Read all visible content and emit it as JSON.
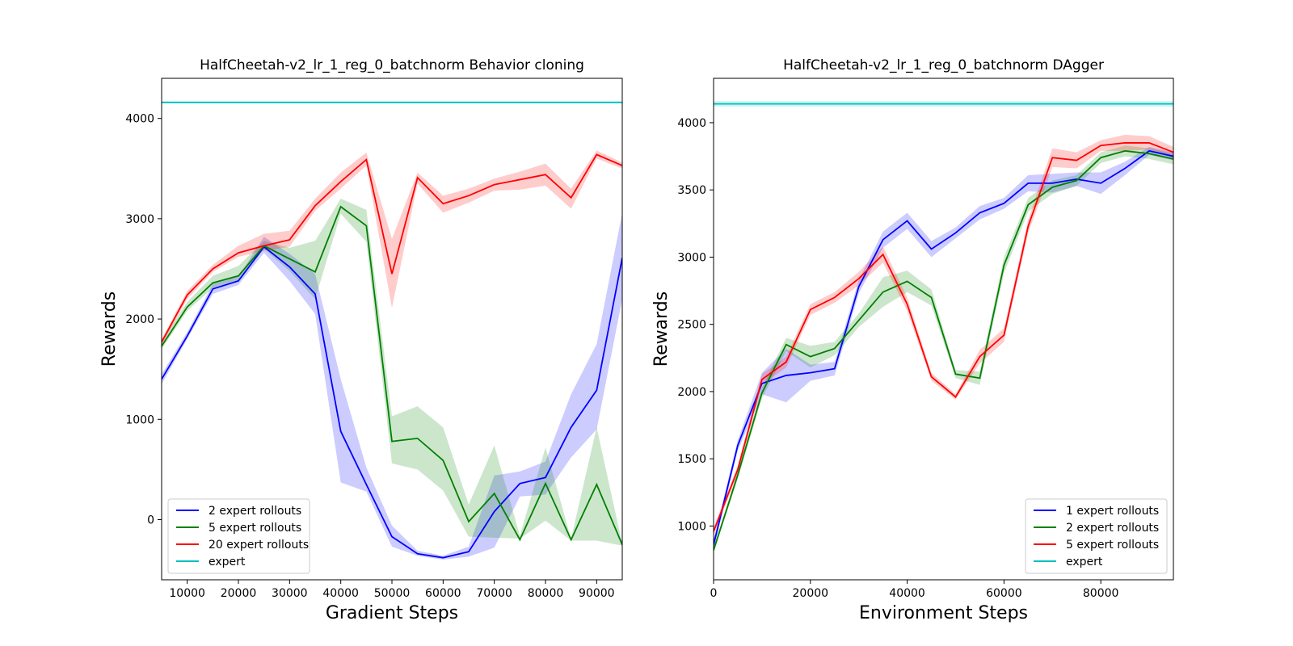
{
  "chart_data": [
    {
      "type": "line",
      "title": "HalfCheetah-v2_lr_1_reg_0_batchnorm Behavior cloning",
      "xlabel": "Gradient Steps",
      "ylabel": "Rewards",
      "xlim": [
        5000,
        95000
      ],
      "ylim": [
        -600,
        4400
      ],
      "xticks": [
        10000,
        20000,
        30000,
        40000,
        50000,
        60000,
        70000,
        80000,
        90000
      ],
      "yticks": [
        0,
        1000,
        2000,
        3000,
        4000
      ],
      "legend_position": "lower-left",
      "x": [
        5000,
        10000,
        15000,
        20000,
        25000,
        30000,
        35000,
        40000,
        45000,
        50000,
        55000,
        60000,
        65000,
        70000,
        75000,
        80000,
        85000,
        90000,
        95000
      ],
      "series": [
        {
          "name": "2 expert rollouts",
          "color": "#0000ff",
          "values": [
            1400,
            1830,
            2300,
            2380,
            2720,
            2520,
            2250,
            880,
            350,
            -170,
            -340,
            -380,
            -320,
            80,
            360,
            420,
            920,
            1290,
            2610
          ],
          "band_low": [
            1350,
            1800,
            2250,
            2340,
            2660,
            2380,
            2050,
            370,
            280,
            -270,
            -360,
            -400,
            -370,
            -280,
            230,
            250,
            620,
            900,
            2200
          ],
          "band_high": [
            1450,
            1870,
            2350,
            2420,
            2820,
            2650,
            2450,
            1400,
            520,
            -60,
            -310,
            -360,
            -270,
            440,
            480,
            580,
            1250,
            1750,
            3060
          ]
        },
        {
          "name": "5 expert rollouts",
          "color": "#008000",
          "values": [
            1730,
            2120,
            2360,
            2430,
            2730,
            2600,
            2470,
            3120,
            2930,
            780,
            810,
            590,
            -20,
            260,
            -200,
            360,
            -200,
            350,
            -250
          ],
          "band_low": [
            1700,
            2080,
            2310,
            2390,
            2700,
            2480,
            2200,
            3050,
            2770,
            560,
            500,
            290,
            -170,
            -180,
            -190,
            -10,
            -210,
            -210,
            -260
          ],
          "band_high": [
            1780,
            2170,
            2430,
            2530,
            2780,
            2710,
            2780,
            3200,
            3090,
            1030,
            1130,
            920,
            150,
            740,
            -160,
            720,
            -190,
            920,
            -240
          ]
        },
        {
          "name": "20 expert rollouts",
          "color": "#ff0000",
          "values": [
            1770,
            2240,
            2500,
            2660,
            2730,
            2790,
            3130,
            3370,
            3590,
            2450,
            3410,
            3150,
            3230,
            3340,
            3390,
            3440,
            3210,
            3640,
            3530
          ],
          "band_low": [
            1740,
            2200,
            2470,
            2620,
            2680,
            2720,
            3080,
            3300,
            3530,
            2110,
            3350,
            3060,
            3160,
            3280,
            3290,
            3330,
            3100,
            3600,
            3500
          ],
          "band_high": [
            1800,
            2280,
            2540,
            2730,
            2850,
            2880,
            3200,
            3460,
            3660,
            2800,
            3460,
            3230,
            3300,
            3400,
            3470,
            3550,
            3300,
            3680,
            3560
          ]
        },
        {
          "name": "expert",
          "color": "#00bfbf",
          "values": [
            4160,
            4160,
            4160,
            4160,
            4160,
            4160,
            4160,
            4160,
            4160,
            4160,
            4160,
            4160,
            4160,
            4160,
            4160,
            4160,
            4160,
            4160,
            4160
          ],
          "band_low": [
            4150,
            4150,
            4150,
            4150,
            4150,
            4150,
            4150,
            4150,
            4150,
            4150,
            4150,
            4150,
            4150,
            4150,
            4150,
            4150,
            4150,
            4150,
            4150
          ],
          "band_high": [
            4170,
            4170,
            4170,
            4170,
            4170,
            4170,
            4170,
            4170,
            4170,
            4170,
            4170,
            4170,
            4170,
            4170,
            4170,
            4170,
            4170,
            4170,
            4170
          ]
        }
      ]
    },
    {
      "type": "line",
      "title": "HalfCheetah-v2_lr_1_reg_0_batchnorm DAgger",
      "xlabel": "Environment Steps",
      "ylabel": "Rewards",
      "xlim": [
        0,
        95000
      ],
      "ylim": [
        600,
        4330
      ],
      "xticks": [
        0,
        20000,
        40000,
        60000,
        80000
      ],
      "yticks": [
        1000,
        1500,
        2000,
        2500,
        3000,
        3500,
        4000
      ],
      "legend_position": "lower-right",
      "x": [
        0,
        5000,
        10000,
        15000,
        20000,
        25000,
        30000,
        35000,
        40000,
        45000,
        50000,
        55000,
        60000,
        65000,
        70000,
        75000,
        80000,
        85000,
        90000,
        95000
      ],
      "series": [
        {
          "name": "1 expert rollouts",
          "color": "#0000ff",
          "values": [
            860,
            1600,
            2060,
            2120,
            2140,
            2170,
            2780,
            3130,
            3270,
            3060,
            3180,
            3330,
            3400,
            3550,
            3550,
            3580,
            3550,
            3660,
            3790,
            3750
          ],
          "band_low": [
            820,
            1560,
            1980,
            1920,
            2080,
            2120,
            2730,
            3070,
            3210,
            3000,
            3140,
            3280,
            3360,
            3490,
            3480,
            3530,
            3470,
            3610,
            3760,
            3720
          ],
          "band_high": [
            900,
            1640,
            2140,
            2320,
            2200,
            2220,
            2830,
            3190,
            3330,
            3120,
            3220,
            3380,
            3440,
            3610,
            3620,
            3630,
            3630,
            3710,
            3820,
            3780
          ]
        },
        {
          "name": "2 expert rollouts",
          "color": "#008000",
          "values": [
            820,
            1380,
            1990,
            2350,
            2260,
            2320,
            2530,
            2740,
            2820,
            2700,
            2130,
            2100,
            2940,
            3390,
            3520,
            3570,
            3740,
            3790,
            3770,
            3730
          ],
          "band_low": [
            800,
            1350,
            1950,
            2300,
            2180,
            2270,
            2480,
            2630,
            2740,
            2640,
            2100,
            2050,
            2880,
            3340,
            3470,
            3530,
            3700,
            3750,
            3730,
            3690
          ],
          "band_high": [
            840,
            1410,
            2030,
            2400,
            2340,
            2370,
            2580,
            2850,
            2900,
            2760,
            2160,
            2150,
            3000,
            3440,
            3570,
            3610,
            3780,
            3830,
            3810,
            3770
          ]
        },
        {
          "name": "5 expert rollouts",
          "color": "#ff0000",
          "values": [
            960,
            1420,
            2090,
            2220,
            2610,
            2700,
            2840,
            3020,
            2650,
            2110,
            1960,
            2260,
            2420,
            3230,
            3740,
            3720,
            3830,
            3850,
            3850,
            3780
          ],
          "band_low": [
            930,
            1390,
            2050,
            2180,
            2570,
            2660,
            2790,
            2960,
            2600,
            2080,
            1940,
            2210,
            2370,
            3180,
            3670,
            3660,
            3790,
            3790,
            3800,
            3740
          ],
          "band_high": [
            990,
            1450,
            2130,
            2260,
            2650,
            2740,
            2890,
            3080,
            2700,
            2140,
            1980,
            2310,
            2470,
            3280,
            3810,
            3780,
            3870,
            3910,
            3900,
            3820
          ]
        },
        {
          "name": "expert",
          "color": "#00bfbf",
          "values": [
            4140,
            4140,
            4140,
            4140,
            4140,
            4140,
            4140,
            4140,
            4140,
            4140,
            4140,
            4140,
            4140,
            4140,
            4140,
            4140,
            4140,
            4140,
            4140,
            4140
          ],
          "band_low": [
            4120,
            4120,
            4120,
            4120,
            4120,
            4120,
            4120,
            4120,
            4120,
            4120,
            4120,
            4120,
            4120,
            4120,
            4120,
            4120,
            4120,
            4120,
            4120,
            4120
          ],
          "band_high": [
            4160,
            4160,
            4160,
            4160,
            4160,
            4160,
            4160,
            4160,
            4160,
            4160,
            4160,
            4160,
            4160,
            4160,
            4160,
            4160,
            4160,
            4160,
            4160,
            4160
          ]
        }
      ]
    }
  ]
}
